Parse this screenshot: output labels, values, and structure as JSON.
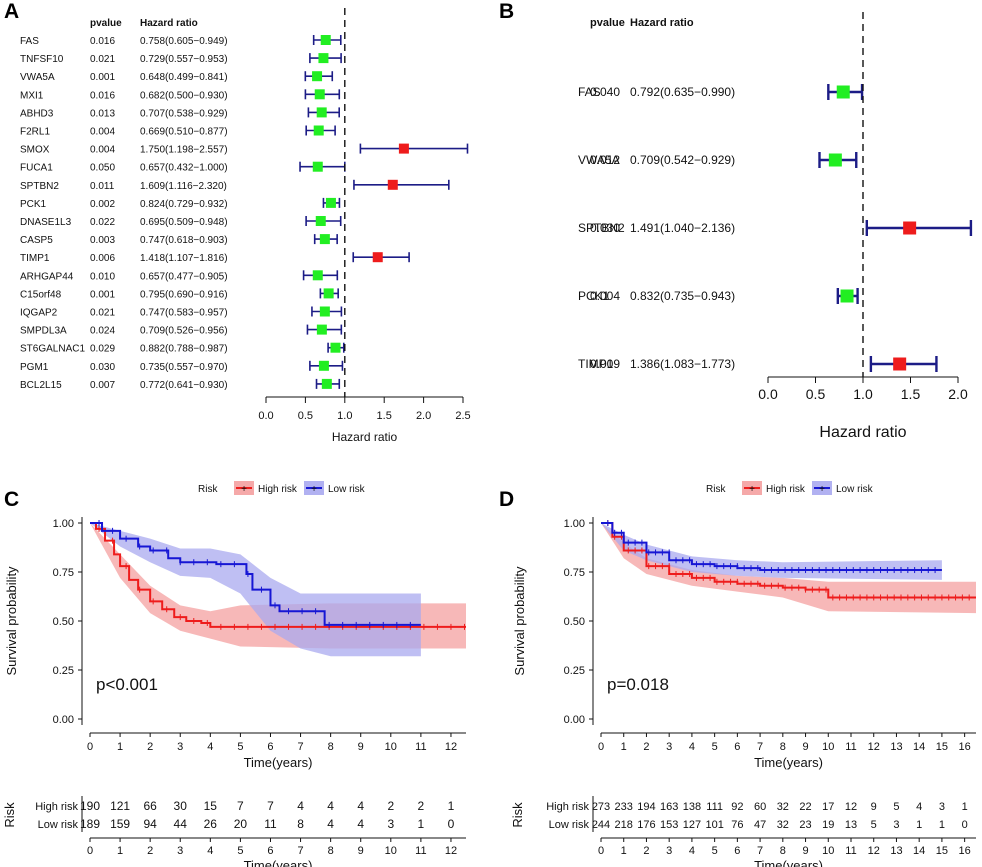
{
  "colors": {
    "high": "#ee1c1c",
    "low": "#1616d4",
    "high_band": "#f4a0a0",
    "low_band": "#a9a9ef",
    "square_green": "#22ee22",
    "square_red": "#ee1c1c",
    "whisker": "#1c1c86"
  },
  "chart_data": [
    {
      "panel": "A",
      "type": "forest",
      "col_pvalue": "pvalue",
      "col_hr": "Hazard ratio",
      "xlabel": "Hazard ratio",
      "xlim": [
        0,
        2.5
      ],
      "ticks": [
        "0.0",
        "0.5",
        "1.0",
        "1.5",
        "2.0",
        "2.5"
      ],
      "reference": 1.0,
      "rows": [
        {
          "gene": "FAS",
          "p": "0.016",
          "hr_text": "0.758(0.605−0.949)",
          "hr": 0.758,
          "lo": 0.605,
          "hi": 0.949
        },
        {
          "gene": "TNFSF10",
          "p": "0.021",
          "hr_text": "0.729(0.557−0.953)",
          "hr": 0.729,
          "lo": 0.557,
          "hi": 0.953
        },
        {
          "gene": "VWA5A",
          "p": "0.001",
          "hr_text": "0.648(0.499−0.841)",
          "hr": 0.648,
          "lo": 0.499,
          "hi": 0.841
        },
        {
          "gene": "MXI1",
          "p": "0.016",
          "hr_text": "0.682(0.500−0.930)",
          "hr": 0.682,
          "lo": 0.5,
          "hi": 0.93
        },
        {
          "gene": "ABHD3",
          "p": "0.013",
          "hr_text": "0.707(0.538−0.929)",
          "hr": 0.707,
          "lo": 0.538,
          "hi": 0.929
        },
        {
          "gene": "F2RL1",
          "p": "0.004",
          "hr_text": "0.669(0.510−0.877)",
          "hr": 0.669,
          "lo": 0.51,
          "hi": 0.877
        },
        {
          "gene": "SMOX",
          "p": "0.004",
          "hr_text": "1.750(1.198−2.557)",
          "hr": 1.75,
          "lo": 1.198,
          "hi": 2.557
        },
        {
          "gene": "FUCA1",
          "p": "0.050",
          "hr_text": "0.657(0.432−1.000)",
          "hr": 0.657,
          "lo": 0.432,
          "hi": 1.0
        },
        {
          "gene": "SPTBN2",
          "p": "0.011",
          "hr_text": "1.609(1.116−2.320)",
          "hr": 1.609,
          "lo": 1.116,
          "hi": 2.32
        },
        {
          "gene": "PCK1",
          "p": "0.002",
          "hr_text": "0.824(0.729−0.932)",
          "hr": 0.824,
          "lo": 0.729,
          "hi": 0.932
        },
        {
          "gene": "DNASE1L3",
          "p": "0.022",
          "hr_text": "0.695(0.509−0.948)",
          "hr": 0.695,
          "lo": 0.509,
          "hi": 0.948
        },
        {
          "gene": "CASP5",
          "p": "0.003",
          "hr_text": "0.747(0.618−0.903)",
          "hr": 0.747,
          "lo": 0.618,
          "hi": 0.903
        },
        {
          "gene": "TIMP1",
          "p": "0.006",
          "hr_text": "1.418(1.107−1.816)",
          "hr": 1.418,
          "lo": 1.107,
          "hi": 1.816
        },
        {
          "gene": "ARHGAP44",
          "p": "0.010",
          "hr_text": "0.657(0.477−0.905)",
          "hr": 0.657,
          "lo": 0.477,
          "hi": 0.905
        },
        {
          "gene": "C15orf48",
          "p": "0.001",
          "hr_text": "0.795(0.690−0.916)",
          "hr": 0.795,
          "lo": 0.69,
          "hi": 0.916
        },
        {
          "gene": "IQGAP2",
          "p": "0.021",
          "hr_text": "0.747(0.583−0.957)",
          "hr": 0.747,
          "lo": 0.583,
          "hi": 0.957
        },
        {
          "gene": "SMPDL3A",
          "p": "0.024",
          "hr_text": "0.709(0.526−0.956)",
          "hr": 0.709,
          "lo": 0.526,
          "hi": 0.956
        },
        {
          "gene": "ST6GALNAC1",
          "p": "0.029",
          "hr_text": "0.882(0.788−0.987)",
          "hr": 0.882,
          "lo": 0.788,
          "hi": 0.987
        },
        {
          "gene": "PGM1",
          "p": "0.030",
          "hr_text": "0.735(0.557−0.970)",
          "hr": 0.735,
          "lo": 0.557,
          "hi": 0.97
        },
        {
          "gene": "BCL2L15",
          "p": "0.007",
          "hr_text": "0.772(0.641−0.930)",
          "hr": 0.772,
          "lo": 0.641,
          "hi": 0.93
        }
      ]
    },
    {
      "panel": "B",
      "type": "forest",
      "col_pvalue": "pvalue",
      "col_hr": "Hazard ratio",
      "xlabel": "Hazard ratio",
      "xlim": [
        0,
        2.0
      ],
      "ticks": [
        "0.0",
        "0.5",
        "1.0",
        "1.5",
        "2.0"
      ],
      "reference": 1.0,
      "rows": [
        {
          "gene": "FAS",
          "p": "0.040",
          "hr_text": "0.792(0.635−0.990)",
          "hr": 0.792,
          "lo": 0.635,
          "hi": 0.99
        },
        {
          "gene": "VWA5A",
          "p": "0.012",
          "hr_text": "0.709(0.542−0.929)",
          "hr": 0.709,
          "lo": 0.542,
          "hi": 0.929
        },
        {
          "gene": "SPTBN2",
          "p": "0.030",
          "hr_text": "1.491(1.040−2.136)",
          "hr": 1.491,
          "lo": 1.04,
          "hi": 2.136
        },
        {
          "gene": "PCK1",
          "p": "0.004",
          "hr_text": "0.832(0.735−0.943)",
          "hr": 0.832,
          "lo": 0.735,
          "hi": 0.943
        },
        {
          "gene": "TIMP1",
          "p": "0.009",
          "hr_text": "1.386(1.083−1.773)",
          "hr": 1.386,
          "lo": 1.083,
          "hi": 1.773
        }
      ]
    },
    {
      "panel": "C",
      "type": "kaplan-meier",
      "legend_title": "Risk",
      "legend": [
        "High risk",
        "Low risk"
      ],
      "xlabel": "Time(years)",
      "ylabel": "Survival probability",
      "pvalue_text": "p<0.001",
      "xlim": [
        0,
        12.5
      ],
      "xticks": [
        "0",
        "1",
        "2",
        "3",
        "4",
        "5",
        "6",
        "7",
        "8",
        "9",
        "10",
        "11",
        "12"
      ],
      "ylim": [
        0,
        1
      ],
      "yticks": [
        "0.00",
        "0.25",
        "0.50",
        "0.75",
        "1.00"
      ],
      "high": {
        "curve": [
          [
            0,
            1
          ],
          [
            0.2,
            0.97
          ],
          [
            0.5,
            0.91
          ],
          [
            0.8,
            0.84
          ],
          [
            1,
            0.78
          ],
          [
            1.3,
            0.71
          ],
          [
            1.6,
            0.66
          ],
          [
            2,
            0.6
          ],
          [
            2.4,
            0.56
          ],
          [
            2.8,
            0.52
          ],
          [
            3.2,
            0.5
          ],
          [
            3.7,
            0.49
          ],
          [
            4,
            0.47
          ],
          [
            12.5,
            0.47
          ]
        ],
        "lower": [
          [
            0,
            1
          ],
          [
            1,
            0.72
          ],
          [
            2,
            0.54
          ],
          [
            3,
            0.45
          ],
          [
            4,
            0.41
          ],
          [
            5,
            0.37
          ],
          [
            8,
            0.36
          ],
          [
            12.5,
            0.36
          ]
        ],
        "upper": [
          [
            0,
            1
          ],
          [
            1,
            0.84
          ],
          [
            2,
            0.68
          ],
          [
            3,
            0.58
          ],
          [
            4,
            0.55
          ],
          [
            5,
            0.58
          ],
          [
            8,
            0.59
          ],
          [
            12.5,
            0.59
          ]
        ]
      },
      "low": {
        "curve": [
          [
            0,
            1
          ],
          [
            0.4,
            0.96
          ],
          [
            1,
            0.92
          ],
          [
            1.6,
            0.88
          ],
          [
            2,
            0.86
          ],
          [
            2.6,
            0.82
          ],
          [
            3,
            0.8
          ],
          [
            4,
            0.8
          ],
          [
            4.2,
            0.79
          ],
          [
            5.2,
            0.74
          ],
          [
            5.4,
            0.66
          ],
          [
            6,
            0.58
          ],
          [
            6.3,
            0.55
          ],
          [
            7.8,
            0.48
          ],
          [
            11,
            0.48
          ]
        ],
        "lower": [
          [
            0,
            1
          ],
          [
            1,
            0.88
          ],
          [
            2,
            0.8
          ],
          [
            3,
            0.73
          ],
          [
            4,
            0.72
          ],
          [
            5,
            0.64
          ],
          [
            6,
            0.45
          ],
          [
            7,
            0.36
          ],
          [
            8,
            0.32
          ],
          [
            11,
            0.32
          ]
        ],
        "upper": [
          [
            0,
            1
          ],
          [
            1,
            0.96
          ],
          [
            2,
            0.92
          ],
          [
            3,
            0.87
          ],
          [
            4,
            0.87
          ],
          [
            5,
            0.84
          ],
          [
            6,
            0.72
          ],
          [
            7,
            0.64
          ],
          [
            8,
            0.64
          ],
          [
            11,
            0.64
          ]
        ]
      },
      "risk_table": {
        "title": "Risk",
        "rows": [
          {
            "label": "High risk",
            "counts": [
              "190",
              "121",
              "66",
              "30",
              "15",
              "7",
              "7",
              "4",
              "4",
              "4",
              "2",
              "2",
              "1"
            ]
          },
          {
            "label": "Low risk",
            "counts": [
              "189",
              "159",
              "94",
              "44",
              "26",
              "20",
              "11",
              "8",
              "4",
              "4",
              "3",
              "1",
              "0"
            ]
          }
        ],
        "xlabel": "Time(years)"
      }
    },
    {
      "panel": "D",
      "type": "kaplan-meier",
      "legend_title": "Risk",
      "legend": [
        "High risk",
        "Low risk"
      ],
      "xlabel": "Time(years)",
      "ylabel": "Survival probability",
      "pvalue_text": "p=0.018",
      "xlim": [
        0,
        16.5
      ],
      "xticks": [
        "0",
        "1",
        "2",
        "3",
        "4",
        "5",
        "6",
        "7",
        "8",
        "9",
        "10",
        "11",
        "12",
        "13",
        "14",
        "15",
        "16"
      ],
      "ylim": [
        0,
        1
      ],
      "yticks": [
        "0.00",
        "0.25",
        "0.50",
        "0.75",
        "1.00"
      ],
      "high": {
        "curve": [
          [
            0,
            1
          ],
          [
            0.5,
            0.93
          ],
          [
            1,
            0.86
          ],
          [
            2,
            0.78
          ],
          [
            3,
            0.74
          ],
          [
            4,
            0.72
          ],
          [
            5,
            0.7
          ],
          [
            6,
            0.69
          ],
          [
            7,
            0.68
          ],
          [
            8,
            0.67
          ],
          [
            9,
            0.66
          ],
          [
            9.8,
            0.66
          ],
          [
            10,
            0.62
          ],
          [
            16.5,
            0.62
          ]
        ],
        "lower": [
          [
            0,
            1
          ],
          [
            1,
            0.82
          ],
          [
            2,
            0.74
          ],
          [
            4,
            0.68
          ],
          [
            6,
            0.65
          ],
          [
            8,
            0.62
          ],
          [
            10,
            0.55
          ],
          [
            16.5,
            0.54
          ]
        ],
        "upper": [
          [
            0,
            1
          ],
          [
            1,
            0.9
          ],
          [
            2,
            0.82
          ],
          [
            4,
            0.76
          ],
          [
            6,
            0.73
          ],
          [
            8,
            0.72
          ],
          [
            10,
            0.7
          ],
          [
            16.5,
            0.7
          ]
        ]
      },
      "low": {
        "curve": [
          [
            0,
            1
          ],
          [
            0.5,
            0.95
          ],
          [
            1,
            0.9
          ],
          [
            2,
            0.85
          ],
          [
            3,
            0.81
          ],
          [
            4,
            0.79
          ],
          [
            5,
            0.78
          ],
          [
            6,
            0.77
          ],
          [
            7,
            0.76
          ],
          [
            15,
            0.76
          ]
        ],
        "lower": [
          [
            0,
            1
          ],
          [
            1,
            0.86
          ],
          [
            2,
            0.81
          ],
          [
            4,
            0.75
          ],
          [
            6,
            0.73
          ],
          [
            8,
            0.72
          ],
          [
            15,
            0.71
          ]
        ],
        "upper": [
          [
            0,
            1
          ],
          [
            1,
            0.94
          ],
          [
            2,
            0.89
          ],
          [
            4,
            0.83
          ],
          [
            6,
            0.81
          ],
          [
            8,
            0.8
          ],
          [
            15,
            0.81
          ]
        ]
      },
      "risk_table": {
        "title": "Risk",
        "rows": [
          {
            "label": "High risk",
            "counts": [
              "273",
              "233",
              "194",
              "163",
              "138",
              "111",
              "92",
              "60",
              "32",
              "22",
              "17",
              "12",
              "9",
              "5",
              "4",
              "3",
              "1"
            ]
          },
          {
            "label": "Low risk",
            "counts": [
              "244",
              "218",
              "176",
              "153",
              "127",
              "101",
              "76",
              "47",
              "32",
              "23",
              "19",
              "13",
              "5",
              "3",
              "1",
              "1",
              "0"
            ]
          }
        ],
        "xlabel": "Time(years)"
      }
    }
  ]
}
